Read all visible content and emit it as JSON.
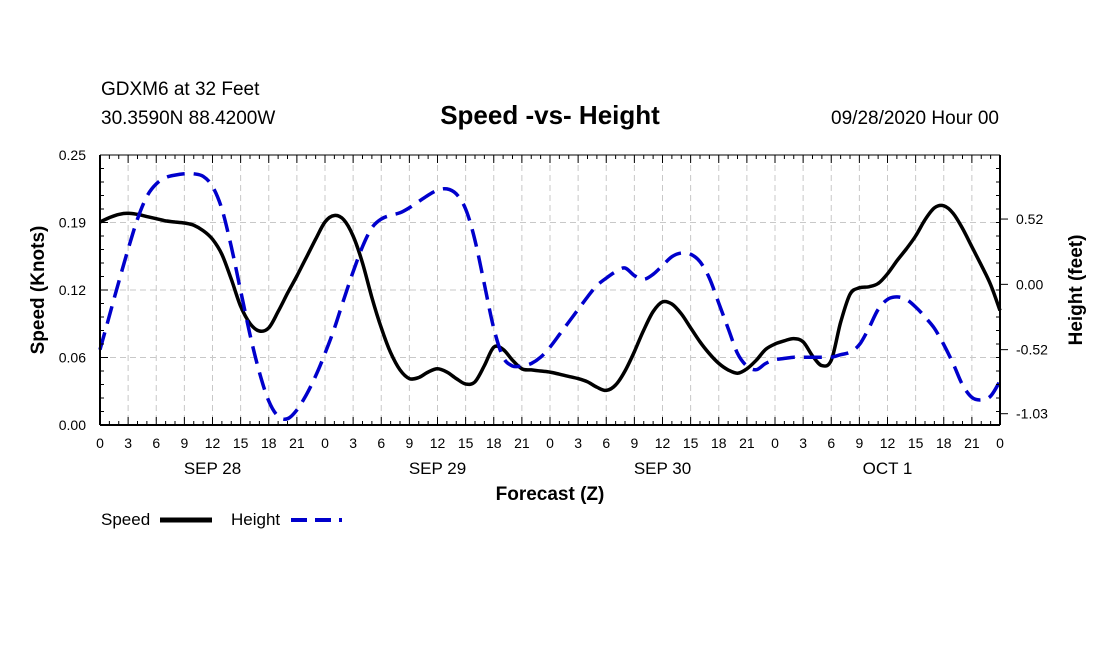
{
  "chart_data": {
    "type": "line",
    "station": "GDXM6 at 32 Feet",
    "location": "30.3590N 88.4200W",
    "title": "Speed -vs- Height",
    "run": "09/28/2020 Hour 00",
    "xlabel": "Forecast (Z)",
    "ylabel_left": "Speed (Knots)",
    "ylabel_right": "Height (feet)",
    "ylim_left": [
      0.0,
      0.25
    ],
    "ylim_right": [
      -1.12,
      1.03
    ],
    "xlim_hours": [
      0,
      96
    ],
    "left_ticks": [
      "0.00",
      "0.06",
      "0.12",
      "0.19",
      "0.25"
    ],
    "left_tick_values": [
      0.0,
      0.0625,
      0.125,
      0.1875,
      0.25
    ],
    "right_ticks": [
      "0.52",
      "0.00",
      "-0.52",
      "-1.03"
    ],
    "right_tick_values": [
      0.52,
      0.0,
      -0.52,
      -1.03
    ],
    "x_tick_labels": [
      "0",
      "3",
      "6",
      "9",
      "12",
      "15",
      "18",
      "21",
      "0",
      "3",
      "6",
      "9",
      "12",
      "15",
      "18",
      "21",
      "0",
      "3",
      "6",
      "9",
      "12",
      "15",
      "18",
      "21",
      "0",
      "3",
      "6",
      "9",
      "12",
      "15",
      "18",
      "21",
      "0"
    ],
    "day_labels": [
      {
        "label": "SEP 28",
        "hour": 12
      },
      {
        "label": "SEP 29",
        "hour": 36
      },
      {
        "label": "SEP 30",
        "hour": 60
      },
      {
        "label": "OCT 1",
        "hour": 84
      }
    ],
    "grid": true,
    "series": [
      {
        "name": "Speed",
        "axis": "left",
        "color": "#000000",
        "dash": "solid",
        "x": [
          0,
          1,
          2,
          3,
          4,
          5,
          6,
          7,
          8,
          9,
          10,
          11,
          12,
          13,
          14,
          15,
          16,
          17,
          18,
          19,
          20,
          21,
          22,
          23,
          24,
          25,
          26,
          27,
          28,
          29,
          30,
          31,
          32,
          33,
          34,
          35,
          36,
          37,
          38,
          39,
          40,
          41,
          42,
          43,
          44,
          45,
          46,
          47,
          48,
          49,
          50,
          51,
          52,
          53,
          54,
          55,
          56,
          57,
          58,
          59,
          60,
          61,
          62,
          63,
          64,
          65,
          66,
          67,
          68,
          69,
          70,
          71,
          72,
          73,
          74,
          75,
          76,
          77,
          78,
          79,
          80,
          81,
          82,
          83,
          84,
          85,
          86,
          87,
          88,
          89,
          90,
          91,
          92,
          93,
          94,
          95,
          96
        ],
        "values": [
          0.188,
          0.192,
          0.195,
          0.196,
          0.195,
          0.193,
          0.191,
          0.189,
          0.188,
          0.187,
          0.185,
          0.18,
          0.172,
          0.158,
          0.135,
          0.11,
          0.094,
          0.087,
          0.09,
          0.105,
          0.122,
          0.138,
          0.155,
          0.172,
          0.188,
          0.194,
          0.19,
          0.175,
          0.15,
          0.118,
          0.09,
          0.067,
          0.051,
          0.043,
          0.044,
          0.049,
          0.052,
          0.049,
          0.043,
          0.038,
          0.04,
          0.055,
          0.072,
          0.07,
          0.06,
          0.052,
          0.051,
          0.05,
          0.049,
          0.047,
          0.045,
          0.043,
          0.04,
          0.035,
          0.032,
          0.037,
          0.05,
          0.068,
          0.088,
          0.105,
          0.114,
          0.112,
          0.103,
          0.09,
          0.077,
          0.066,
          0.057,
          0.051,
          0.048,
          0.052,
          0.06,
          0.07,
          0.075,
          0.078,
          0.08,
          0.077,
          0.064,
          0.055,
          0.06,
          0.095,
          0.121,
          0.127,
          0.128,
          0.131,
          0.14,
          0.152,
          0.163,
          0.175,
          0.19,
          0.201,
          0.203,
          0.196,
          0.182,
          0.165,
          0.148,
          0.13,
          0.106
        ]
      },
      {
        "name": "Height",
        "axis": "right",
        "color": "#0000cc",
        "dash": "dashed",
        "x": [
          0,
          1,
          2,
          3,
          4,
          5,
          6,
          7,
          8,
          9,
          10,
          11,
          12,
          13,
          14,
          15,
          16,
          17,
          18,
          19,
          20,
          21,
          22,
          23,
          24,
          25,
          26,
          27,
          28,
          29,
          30,
          31,
          32,
          33,
          34,
          35,
          36,
          37,
          38,
          39,
          40,
          41,
          42,
          43,
          44,
          45,
          46,
          47,
          48,
          49,
          50,
          51,
          52,
          53,
          54,
          55,
          56,
          57,
          58,
          59,
          60,
          61,
          62,
          63,
          64,
          65,
          66,
          67,
          68,
          69,
          70,
          71,
          72,
          73,
          74,
          75,
          76,
          77,
          78,
          79,
          80,
          81,
          82,
          83,
          84,
          85,
          86,
          87,
          88,
          89,
          90,
          91,
          92,
          93,
          94,
          95,
          96
        ],
        "values": [
          -0.52,
          -0.25,
          0.02,
          0.28,
          0.52,
          0.7,
          0.8,
          0.85,
          0.87,
          0.88,
          0.88,
          0.86,
          0.78,
          0.6,
          0.3,
          -0.05,
          -0.4,
          -0.7,
          -0.93,
          -1.05,
          -1.07,
          -1.0,
          -0.88,
          -0.73,
          -0.55,
          -0.35,
          -0.12,
          0.1,
          0.3,
          0.45,
          0.52,
          0.55,
          0.57,
          0.61,
          0.66,
          0.71,
          0.75,
          0.76,
          0.72,
          0.6,
          0.35,
          0.0,
          -0.35,
          -0.58,
          -0.65,
          -0.65,
          -0.63,
          -0.58,
          -0.5,
          -0.4,
          -0.3,
          -0.2,
          -0.1,
          -0.01,
          0.05,
          0.1,
          0.13,
          0.07,
          0.04,
          0.08,
          0.15,
          0.22,
          0.25,
          0.24,
          0.18,
          0.05,
          -0.15,
          -0.35,
          -0.55,
          -0.65,
          -0.68,
          -0.63,
          -0.6,
          -0.59,
          -0.58,
          -0.58,
          -0.58,
          -0.58,
          -0.58,
          -0.56,
          -0.54,
          -0.48,
          -0.35,
          -0.2,
          -0.12,
          -0.1,
          -0.12,
          -0.18,
          -0.26,
          -0.35,
          -0.48,
          -0.63,
          -0.8,
          -0.9,
          -0.92,
          -0.89,
          -0.77
        ]
      }
    ]
  },
  "legend": {
    "speed_label": "Speed",
    "height_label": "Height"
  }
}
